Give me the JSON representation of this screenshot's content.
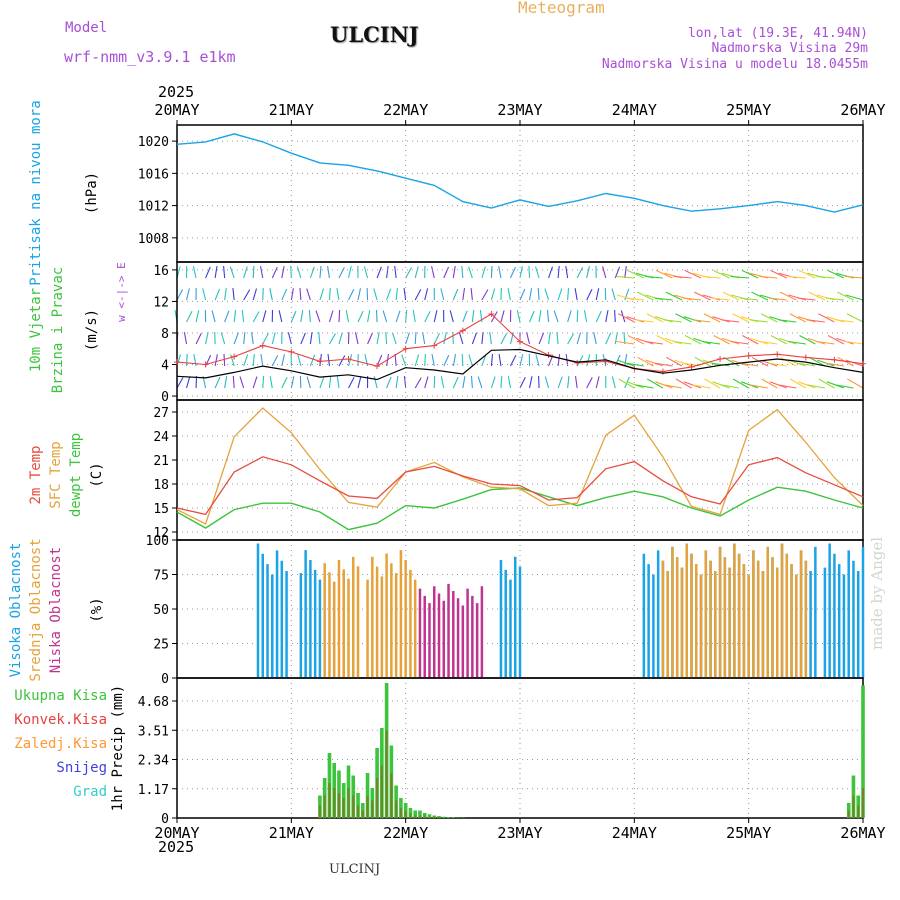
{
  "header": {
    "model_label": "Model",
    "model_name": "wrf-nmm_v3.9.1 e1km",
    "station": "ULCINJ",
    "meteogram": "Meteogram",
    "lonlat": "lon,lat (19.3E, 41.94N)",
    "altitude": "Nadmorska Visina 29m",
    "model_altitude": "Nadmorska Visina u modelu 18.0455m",
    "year_top": "2025",
    "year_bottom": "2025",
    "footer": "ULCINJ",
    "watermark": "made by Angel"
  },
  "colors": {
    "pressure": "#1aa3e6",
    "temp2m": "#e84c3d",
    "sfc": "#e6a23a",
    "dewpt": "#3cc43c",
    "speed": "#000000",
    "gust": "#e84040",
    "high_cloud": "#1aa3e6",
    "mid_cloud": "#e6a23a",
    "low_cloud": "#c0338f",
    "precip_total": "#3cc43c",
    "precip_conv": "#e84040",
    "label_purple": "#a84fd6",
    "label_orange": "#e8a53a"
  },
  "chart_data": [
    {
      "type": "line",
      "panel": "pressure",
      "ylabel_main": "Pritisak na nivou mora",
      "ylabel_unit": "(hPa)",
      "x_ticks": [
        "20MAY",
        "21MAY",
        "22MAY",
        "23MAY",
        "24MAY",
        "25MAY",
        "26MAY"
      ],
      "ylim": [
        1005,
        1022
      ],
      "y_ticks": [
        1008,
        1012,
        1016,
        1020
      ],
      "x_hours": [
        0,
        6,
        12,
        18,
        24,
        30,
        36,
        42,
        48,
        54,
        60,
        66,
        72,
        78,
        84,
        90,
        96,
        102,
        108,
        114,
        120,
        126,
        132,
        138,
        144
      ],
      "series": [
        {
          "name": "pressure",
          "values": [
            1019.6,
            1019.9,
            1020.9,
            1019.9,
            1018.5,
            1017.3,
            1017.0,
            1016.3,
            1015.4,
            1014.5,
            1012.5,
            1011.7,
            1012.7,
            1011.9,
            1012.6,
            1013.5,
            1012.9,
            1012.0,
            1011.3,
            1011.6,
            1012.0,
            1012.5,
            1012.0,
            1011.2,
            1012.1
          ]
        }
      ]
    },
    {
      "type": "line",
      "panel": "wind",
      "ylabel_main": "10m Vjetar",
      "ylabel_sub": "Brzina i Pravac",
      "ylabel_unit": "(m/s)",
      "compass": "w <-|-> E",
      "ylim": [
        -0.5,
        17
      ],
      "y_ticks": [
        0,
        4,
        8,
        12,
        16
      ],
      "x_hours": [
        0,
        6,
        12,
        18,
        24,
        30,
        36,
        42,
        48,
        54,
        60,
        66,
        72,
        78,
        84,
        90,
        96,
        102,
        108,
        114,
        120,
        126,
        132,
        138,
        144
      ],
      "series": [
        {
          "name": "speed",
          "values": [
            2.5,
            2.3,
            3.0,
            3.8,
            3.2,
            2.4,
            2.7,
            2.1,
            3.6,
            3.3,
            2.8,
            5.8,
            5.9,
            5.1,
            4.3,
            4.6,
            3.5,
            2.9,
            3.3,
            3.9,
            4.3,
            4.7,
            4.3,
            3.6,
            3.0
          ]
        },
        {
          "name": "gust",
          "values": [
            4.3,
            4.0,
            5.0,
            6.4,
            5.6,
            4.4,
            4.7,
            3.8,
            6.0,
            6.4,
            8.3,
            10.4,
            6.9,
            5.2,
            4.2,
            4.4,
            3.5,
            3.1,
            3.7,
            4.7,
            5.1,
            5.3,
            4.9,
            4.6,
            4.1
          ]
        }
      ]
    },
    {
      "type": "line",
      "panel": "temperature",
      "ylabel_labels": [
        "2m Temp",
        "SFC Temp",
        "dewpt Temp"
      ],
      "ylabel_unit": "(C)",
      "ylim": [
        11,
        28.5
      ],
      "y_ticks": [
        12,
        15,
        18,
        21,
        24,
        27
      ],
      "x_hours": [
        0,
        6,
        12,
        18,
        24,
        30,
        36,
        42,
        48,
        54,
        60,
        66,
        72,
        78,
        84,
        90,
        96,
        102,
        108,
        114,
        120,
        126,
        132,
        138,
        144
      ],
      "series": [
        {
          "name": "2m Temp",
          "values": [
            15.0,
            14.2,
            19.5,
            21.4,
            20.4,
            18.4,
            16.5,
            16.2,
            19.5,
            20.2,
            19.0,
            18.0,
            17.8,
            16.0,
            16.3,
            19.9,
            20.8,
            18.4,
            16.4,
            15.5,
            20.4,
            21.3,
            19.4,
            17.9,
            16.4
          ]
        },
        {
          "name": "SFC Temp",
          "values": [
            14.8,
            13.0,
            23.9,
            27.5,
            24.4,
            19.8,
            15.7,
            15.1,
            19.5,
            20.7,
            18.9,
            17.6,
            17.4,
            15.3,
            15.6,
            24.1,
            26.6,
            21.4,
            15.2,
            14.2,
            24.7,
            27.3,
            23.2,
            18.8,
            15.3
          ]
        },
        {
          "name": "dewpt Temp",
          "values": [
            14.5,
            12.5,
            14.8,
            15.6,
            15.6,
            14.5,
            12.3,
            13.1,
            15.3,
            15.0,
            16.1,
            17.3,
            17.5,
            16.4,
            15.3,
            16.3,
            17.1,
            16.4,
            15.0,
            14.0,
            16.0,
            17.6,
            17.1,
            16.0,
            15.0
          ]
        }
      ]
    },
    {
      "type": "bar",
      "panel": "cloud",
      "ylabel_labels": [
        "Visoka Oblacnost",
        "Srednja Oblacnost",
        "Niska Oblacnost"
      ],
      "ylabel_unit": "(%)",
      "ylim": [
        0,
        100
      ],
      "y_ticks": [
        0,
        25,
        50,
        75,
        100
      ],
      "legend": "left",
      "periods": [
        {
          "name": "Visoka Oblacnost",
          "start_h": 17,
          "end_h": 23,
          "value": 100
        },
        {
          "name": "Visoka Oblacnost",
          "start_h": 26,
          "end_h": 30,
          "value": 95
        },
        {
          "name": "Srednja Oblacnost",
          "start_h": 31,
          "end_h": 38,
          "value": 90
        },
        {
          "name": "Srednja Oblacnost",
          "start_h": 40,
          "end_h": 50,
          "value": 95
        },
        {
          "name": "Niska Oblacnost",
          "start_h": 51,
          "end_h": 64,
          "value": 70
        },
        {
          "name": "Visoka Oblacnost",
          "start_h": 68,
          "end_h": 72,
          "value": 95
        },
        {
          "name": "Visoka Oblacnost",
          "start_h": 98,
          "end_h": 134,
          "value": 100
        },
        {
          "name": "Srednja Oblacnost",
          "start_h": 102,
          "end_h": 132,
          "value": 100
        },
        {
          "name": "Visoka Oblacnost",
          "start_h": 136,
          "end_h": 144,
          "value": 100
        }
      ]
    },
    {
      "type": "bar",
      "panel": "precipitation",
      "ylabel_unit": "1hr Precip (mm)",
      "legend_labels": [
        "Ukupna Kisa",
        "Konvek.Kisa",
        "Zaledj.Kisa",
        "Snijeg",
        "Grad"
      ],
      "ylim": [
        0,
        5.6
      ],
      "y_ticks": [
        0,
        1.17,
        2.34,
        3.51,
        4.68
      ],
      "x_hours": [
        30,
        31,
        32,
        33,
        34,
        35,
        36,
        37,
        38,
        39,
        40,
        41,
        42,
        43,
        44,
        45,
        46,
        47,
        48,
        49,
        50,
        51,
        52,
        53,
        54,
        55,
        56,
        57,
        58,
        59,
        60,
        141,
        142,
        143,
        144
      ],
      "series": [
        {
          "name": "Ukupna Kisa",
          "values": [
            0.9,
            1.6,
            2.6,
            2.2,
            1.9,
            1.4,
            2.1,
            1.7,
            1.0,
            0.6,
            1.8,
            1.2,
            2.8,
            3.6,
            5.4,
            2.9,
            1.3,
            0.8,
            0.6,
            0.4,
            0.3,
            0.3,
            0.2,
            0.15,
            0.1,
            0.08,
            0.05,
            0.04,
            0.02,
            0.01,
            0.01,
            0.6,
            1.7,
            0.9,
            5.3
          ]
        },
        {
          "name": "Konvek.Kisa",
          "values": [
            0.5,
            0.9,
            1.4,
            1.2,
            1.0,
            0.8,
            1.2,
            0.9,
            0.5,
            0.3,
            0.9,
            0.7,
            1.6,
            2.1,
            3.5,
            1.8,
            0.7,
            0.4,
            0.3,
            0.2,
            0.1,
            0.1,
            0.1,
            0.05,
            0.05,
            0.03,
            0.02,
            0.01,
            0.01,
            0,
            0,
            0.3,
            0.9,
            0.5,
            1.2
          ]
        }
      ]
    }
  ]
}
